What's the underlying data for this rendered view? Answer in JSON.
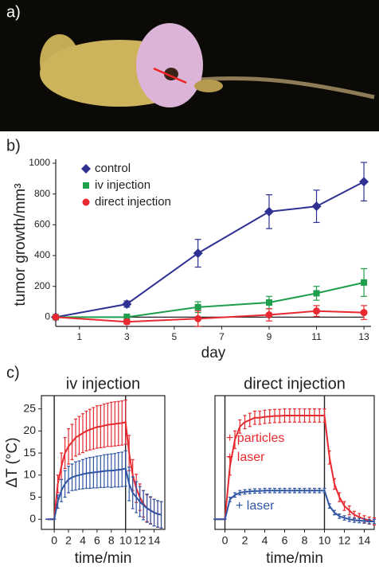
{
  "panel_labels": [
    "a)",
    "b)",
    "c)"
  ],
  "chart_data": [
    {
      "type": "line",
      "x_label": "day",
      "y_label": "tumor growth/mm³",
      "x": [
        0,
        3,
        6,
        9,
        11,
        13
      ],
      "xlim": [
        0,
        13.3
      ],
      "xticks": [
        1,
        3,
        5,
        7,
        9,
        11,
        13
      ],
      "ylim": [
        -60,
        1000
      ],
      "yticks": [
        0,
        200,
        400,
        600,
        800,
        1000
      ],
      "baseline": 0,
      "legend": "upper left",
      "series": [
        {
          "name": "control",
          "color": "#2e3192",
          "marker": "diamond",
          "values": [
            0,
            85,
            415,
            685,
            720,
            880
          ],
          "errors": [
            0,
            20,
            90,
            110,
            105,
            125
          ]
        },
        {
          "name": "iv injection",
          "color": "#1f9e4b",
          "marker": "square",
          "values": [
            0,
            0,
            65,
            95,
            155,
            225
          ],
          "errors": [
            0,
            20,
            35,
            40,
            45,
            90
          ]
        },
        {
          "name": "direct injection",
          "color": "#e8292f",
          "marker": "circle",
          "values": [
            0,
            -30,
            -10,
            15,
            40,
            30
          ],
          "errors": [
            0,
            15,
            50,
            40,
            35,
            45
          ]
        }
      ]
    },
    {
      "type": "line",
      "title": "iv injection",
      "x_label": "time/min",
      "y_label": "ΔT (°C)",
      "x": [
        -1,
        -0.5,
        0,
        0.5,
        1,
        1.5,
        2,
        2.5,
        3,
        3.5,
        4,
        4.5,
        5,
        5.5,
        6,
        6.5,
        7,
        7.5,
        8,
        8.5,
        9,
        9.5,
        10,
        10.5,
        11,
        11.5,
        12,
        12.5,
        13,
        13.5,
        14,
        14.5,
        15
      ],
      "xlim": [
        -1.8,
        15.5
      ],
      "xticks": [
        0,
        2,
        4,
        6,
        8,
        10,
        12,
        14
      ],
      "ylim": [
        -2.3,
        28
      ],
      "yticks": [
        0,
        5,
        10,
        15,
        20,
        25
      ],
      "vlines": [
        0,
        10
      ],
      "series": [
        {
          "color": "#e8292f",
          "values": [
            0,
            0,
            0,
            8,
            12,
            15,
            16.5,
            17.5,
            18.5,
            19,
            19.5,
            20,
            20.3,
            20.6,
            20.9,
            21,
            21.2,
            21.4,
            21.5,
            21.6,
            21.7,
            21.8,
            22,
            15,
            10,
            7,
            5,
            3.5,
            2.5,
            2,
            1.5,
            1.2,
            1
          ],
          "errors": [
            0,
            0,
            0,
            2,
            3,
            3.5,
            4,
            4,
            4.2,
            4.3,
            4.4,
            4.5,
            4.6,
            4.7,
            4.8,
            4.8,
            4.9,
            4.9,
            5,
            5,
            5,
            5,
            5,
            4,
            3.5,
            3.2,
            3,
            3,
            3,
            3,
            3,
            3,
            3
          ]
        },
        {
          "color": "#2f55a4",
          "values": [
            0,
            0,
            0,
            4,
            6.5,
            8,
            9,
            9.5,
            9.8,
            10,
            10.2,
            10.4,
            10.5,
            10.6,
            10.7,
            10.8,
            10.9,
            11,
            11,
            11.1,
            11.2,
            11.3,
            11.5,
            8,
            6,
            5,
            4,
            3.2,
            2.5,
            2,
            1.5,
            1.2,
            1
          ],
          "errors": [
            0,
            0,
            0,
            1.5,
            2.5,
            3,
            3,
            3,
            3.2,
            3.2,
            3.3,
            3.4,
            3.5,
            3.5,
            3.6,
            3.6,
            3.7,
            3.7,
            3.8,
            3.8,
            3.9,
            3.9,
            4,
            3.8,
            3.6,
            3.5,
            3.4,
            3.3,
            3.2,
            3.1,
            3,
            3,
            3
          ]
        }
      ]
    },
    {
      "type": "line",
      "title": "direct injection",
      "x_label": "time/min",
      "x": [
        -1,
        -0.5,
        0,
        0.5,
        1,
        1.5,
        2,
        2.5,
        3,
        3.5,
        4,
        4.5,
        5,
        5.5,
        6,
        6.5,
        7,
        7.5,
        8,
        8.5,
        9,
        9.5,
        10,
        10.5,
        11,
        11.5,
        12,
        12.5,
        13,
        13.5,
        14,
        14.5,
        15
      ],
      "xlim": [
        -1,
        15
      ],
      "xticks": [
        0,
        2,
        4,
        6,
        8,
        10,
        12,
        14
      ],
      "ylim": [
        -2.3,
        28
      ],
      "vlines": [
        0,
        10
      ],
      "series": [
        {
          "color": "#e8292f",
          "values": [
            0,
            0,
            0,
            12,
            18,
            21,
            22,
            22.5,
            23,
            23,
            23.2,
            23.3,
            23.4,
            23.4,
            23.5,
            23.5,
            23.5,
            23.5,
            23.5,
            23.5,
            23.5,
            23.5,
            23.5,
            14,
            8,
            5,
            3,
            2,
            1,
            0.5,
            0,
            -0.3,
            -0.5
          ],
          "errors": [
            0,
            0,
            0,
            2,
            2,
            1.5,
            1.5,
            1.5,
            1.5,
            1.5,
            1.5,
            1.5,
            1.5,
            1.5,
            1.5,
            1.5,
            1.5,
            1.5,
            1.5,
            1.5,
            1.5,
            1.5,
            1.5,
            1.5,
            1.2,
            1,
            1,
            1,
            0.8,
            0.8,
            0.8,
            0.8,
            0.8
          ]
        },
        {
          "color": "#2f55a4",
          "values": [
            0,
            0,
            0,
            4.5,
            5.5,
            6,
            6.2,
            6.3,
            6.4,
            6.4,
            6.5,
            6.5,
            6.5,
            6.5,
            6.5,
            6.5,
            6.5,
            6.5,
            6.5,
            6.5,
            6.5,
            6.5,
            6.5,
            3,
            1.5,
            0.7,
            0.3,
            0,
            -0.2,
            -0.3,
            -0.4,
            -0.5,
            -0.5
          ],
          "errors": [
            0,
            0,
            0,
            0.5,
            0.5,
            0.5,
            0.5,
            0.5,
            0.5,
            0.5,
            0.5,
            0.5,
            0.5,
            0.5,
            0.5,
            0.5,
            0.5,
            0.5,
            0.5,
            0.5,
            0.5,
            0.5,
            0.5,
            0.5,
            0.5,
            0.5,
            0.5,
            0.5,
            0.5,
            0.5,
            0.5,
            0.5,
            0.5
          ]
        }
      ],
      "annotations": [
        {
          "text": "+ particles",
          "color": "#e8292f"
        },
        {
          "text": "+ laser",
          "color": "#e8292f"
        },
        {
          "text": "+ laser",
          "color": "#2f55a4"
        }
      ]
    }
  ]
}
